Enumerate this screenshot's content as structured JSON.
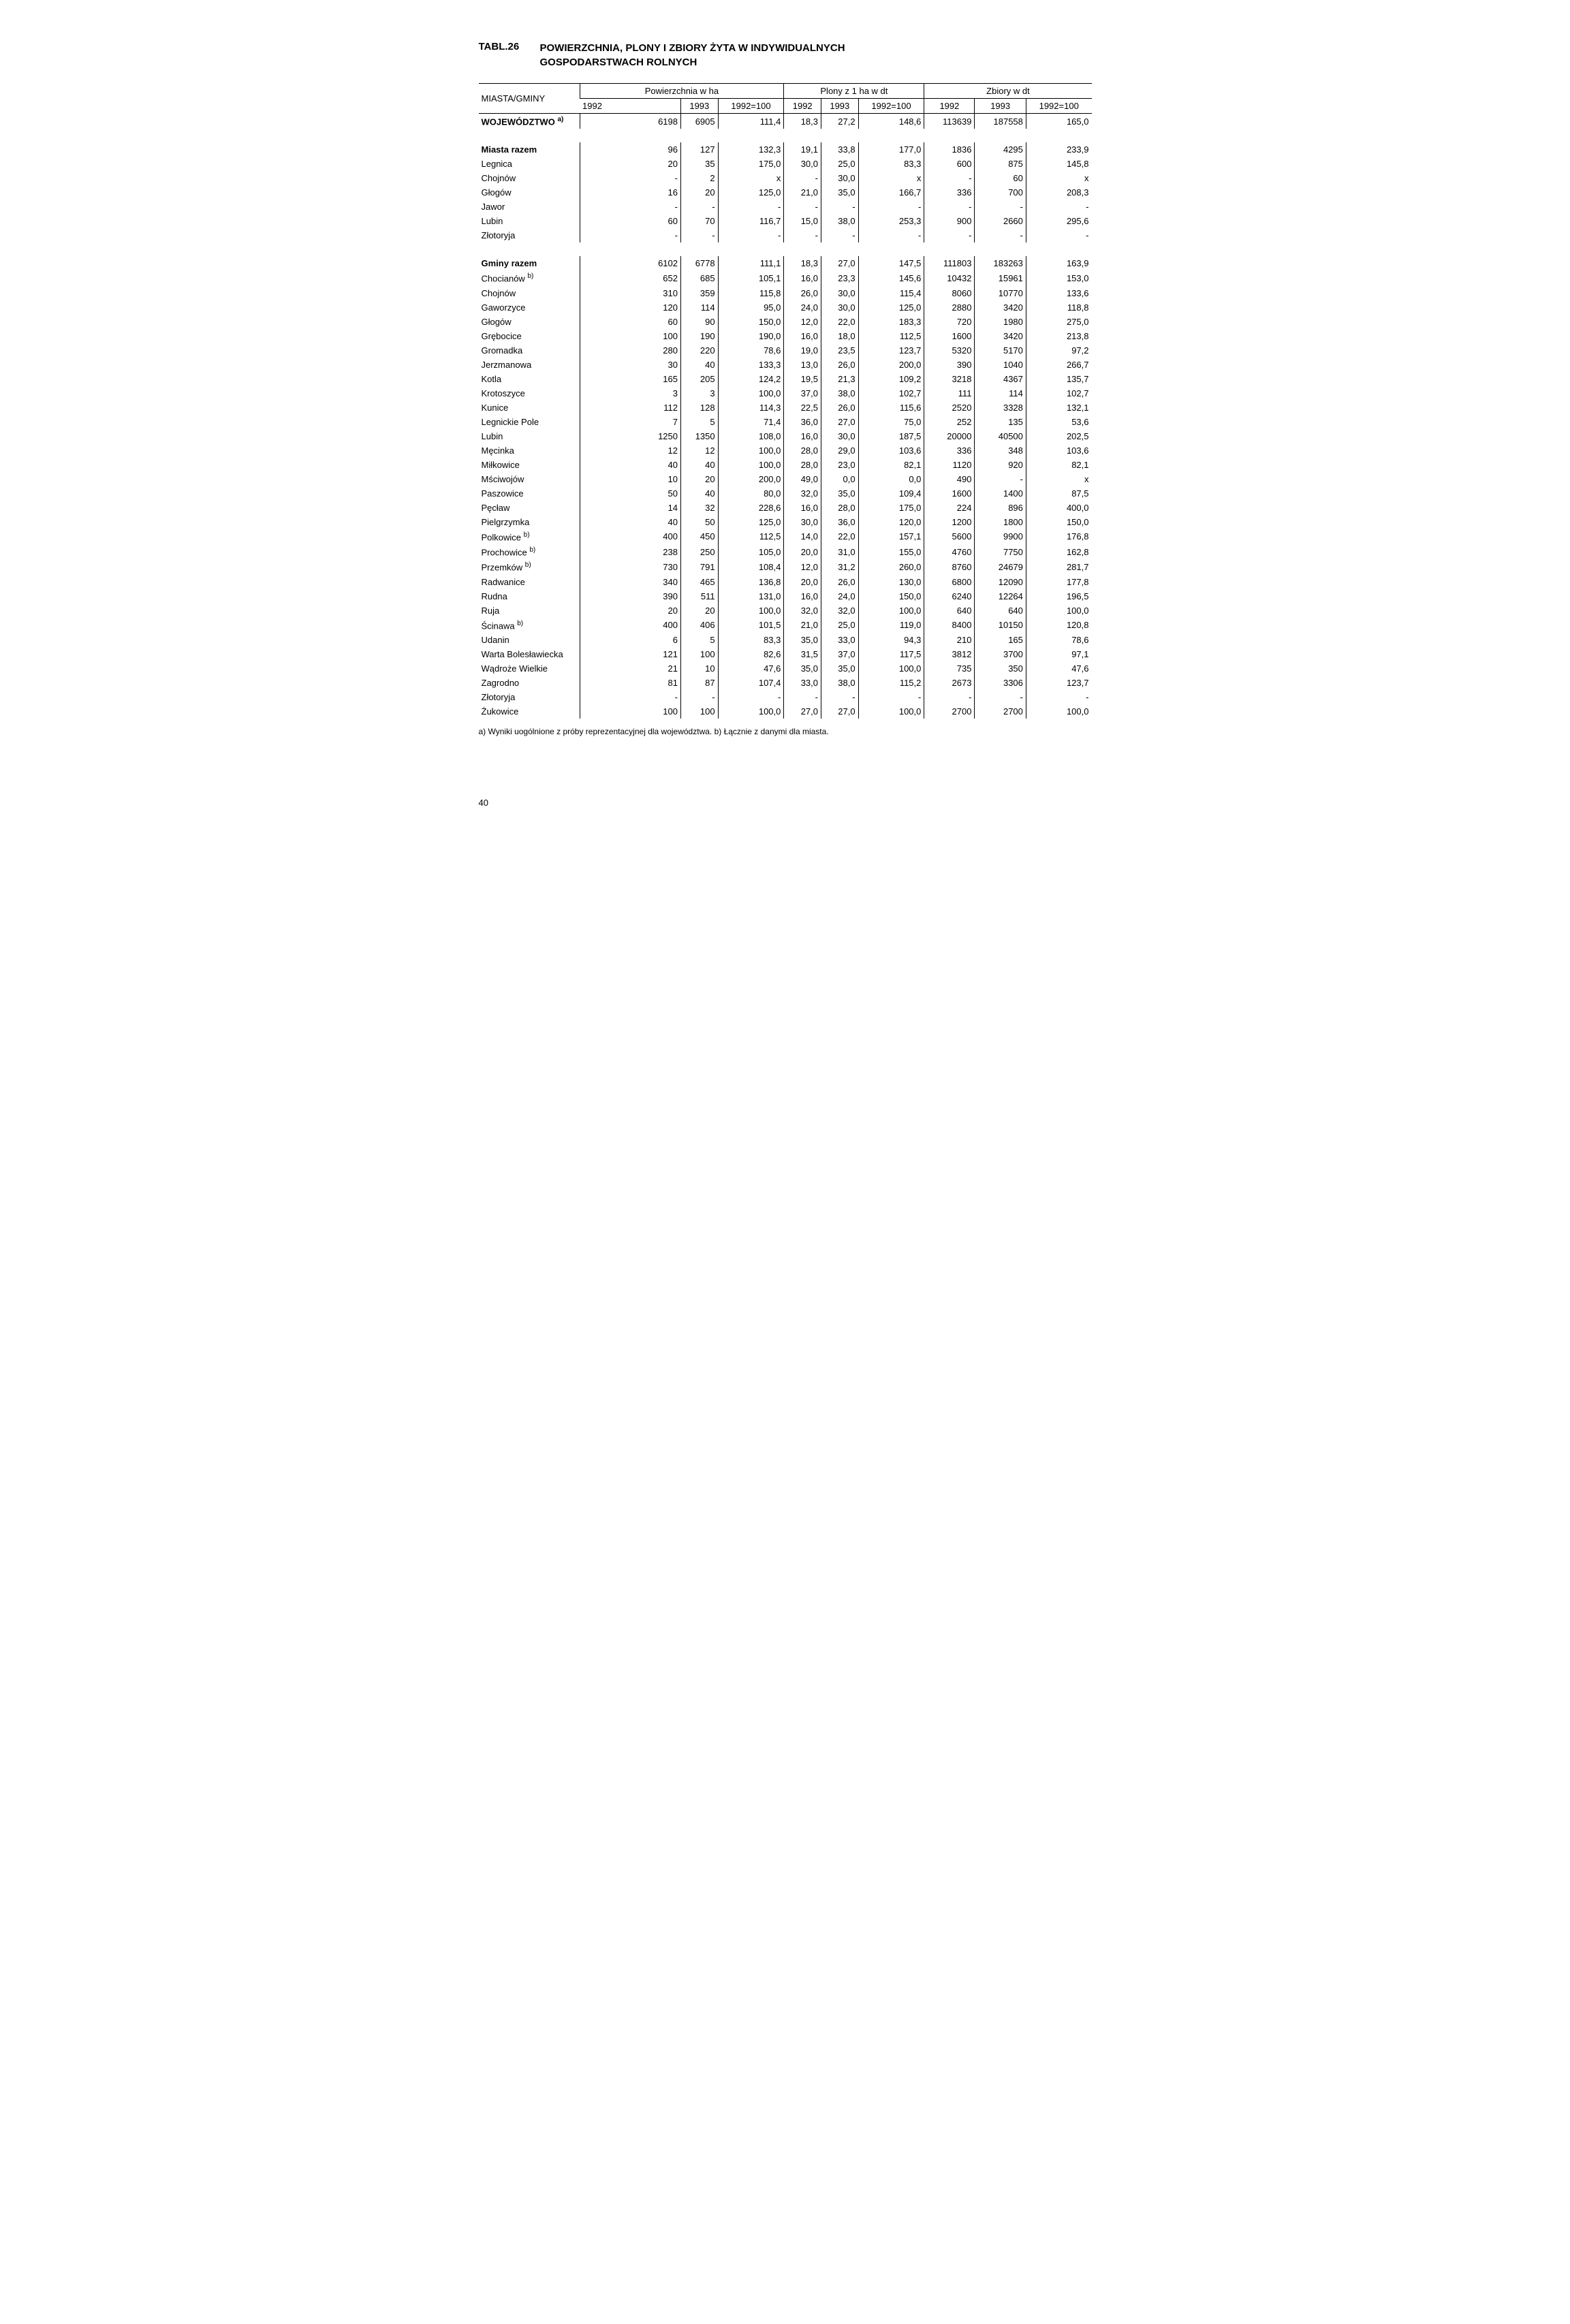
{
  "tabl_label": "TABL.26",
  "tabl_title_line1": "POWIERZCHNIA, PLONY I ZBIORY ŻYTA W INDYWIDUALNYCH",
  "tabl_title_line2": "GOSPODARSTWACH ROLNYCH",
  "header": {
    "col1": "MIASTA/GMINY",
    "group1": "Powierzchnia w ha",
    "group2": "Plony z 1 ha w dt",
    "group3": "Zbiory w dt",
    "y1992": "1992",
    "y1993": "1993",
    "idx": "1992=100"
  },
  "rows": [
    {
      "name": "WOJEWÓDZTWO ",
      "sup": "a)",
      "bold": true,
      "c": [
        "6198",
        "6905",
        "111,4",
        "18,3",
        "27,2",
        "148,6",
        "113639",
        "187558",
        "165,0"
      ]
    },
    {
      "name": "Miasta razem",
      "bold": true,
      "c": [
        "96",
        "127",
        "132,3",
        "19,1",
        "33,8",
        "177,0",
        "1836",
        "4295",
        "233,9"
      ]
    },
    {
      "name": "Legnica",
      "c": [
        "20",
        "35",
        "175,0",
        "30,0",
        "25,0",
        "83,3",
        "600",
        "875",
        "145,8"
      ]
    },
    {
      "name": "Chojnów",
      "c": [
        "-",
        "2",
        "x",
        "-",
        "30,0",
        "x",
        "-",
        "60",
        "x"
      ]
    },
    {
      "name": "Głogów",
      "c": [
        "16",
        "20",
        "125,0",
        "21,0",
        "35,0",
        "166,7",
        "336",
        "700",
        "208,3"
      ]
    },
    {
      "name": "Jawor",
      "c": [
        "-",
        "-",
        "-",
        "-",
        "-",
        "-",
        "-",
        "-",
        "-"
      ]
    },
    {
      "name": "Lubin",
      "c": [
        "60",
        "70",
        "116,7",
        "15,0",
        "38,0",
        "253,3",
        "900",
        "2660",
        "295,6"
      ]
    },
    {
      "name": "Złotoryja",
      "c": [
        "-",
        "-",
        "-",
        "-",
        "-",
        "-",
        "-",
        "-",
        "-"
      ]
    },
    {
      "name": "Gminy razem",
      "bold": true,
      "c": [
        "6102",
        "6778",
        "111,1",
        "18,3",
        "27,0",
        "147,5",
        "111803",
        "183263",
        "163,9"
      ]
    },
    {
      "name": "Chocianów ",
      "sup": "b)",
      "c": [
        "652",
        "685",
        "105,1",
        "16,0",
        "23,3",
        "145,6",
        "10432",
        "15961",
        "153,0"
      ]
    },
    {
      "name": "Chojnów",
      "c": [
        "310",
        "359",
        "115,8",
        "26,0",
        "30,0",
        "115,4",
        "8060",
        "10770",
        "133,6"
      ]
    },
    {
      "name": "Gaworzyce",
      "c": [
        "120",
        "114",
        "95,0",
        "24,0",
        "30,0",
        "125,0",
        "2880",
        "3420",
        "118,8"
      ]
    },
    {
      "name": "Głogów",
      "c": [
        "60",
        "90",
        "150,0",
        "12,0",
        "22,0",
        "183,3",
        "720",
        "1980",
        "275,0"
      ]
    },
    {
      "name": "Grębocice",
      "c": [
        "100",
        "190",
        "190,0",
        "16,0",
        "18,0",
        "112,5",
        "1600",
        "3420",
        "213,8"
      ]
    },
    {
      "name": "Gromadka",
      "c": [
        "280",
        "220",
        "78,6",
        "19,0",
        "23,5",
        "123,7",
        "5320",
        "5170",
        "97,2"
      ]
    },
    {
      "name": "Jerzmanowa",
      "c": [
        "30",
        "40",
        "133,3",
        "13,0",
        "26,0",
        "200,0",
        "390",
        "1040",
        "266,7"
      ]
    },
    {
      "name": "Kotla",
      "c": [
        "165",
        "205",
        "124,2",
        "19,5",
        "21,3",
        "109,2",
        "3218",
        "4367",
        "135,7"
      ]
    },
    {
      "name": "Krotoszyce",
      "c": [
        "3",
        "3",
        "100,0",
        "37,0",
        "38,0",
        "102,7",
        "111",
        "114",
        "102,7"
      ]
    },
    {
      "name": "Kunice",
      "c": [
        "112",
        "128",
        "114,3",
        "22,5",
        "26,0",
        "115,6",
        "2520",
        "3328",
        "132,1"
      ]
    },
    {
      "name": "Legnickie Pole",
      "c": [
        "7",
        "5",
        "71,4",
        "36,0",
        "27,0",
        "75,0",
        "252",
        "135",
        "53,6"
      ]
    },
    {
      "name": "Lubin",
      "c": [
        "1250",
        "1350",
        "108,0",
        "16,0",
        "30,0",
        "187,5",
        "20000",
        "40500",
        "202,5"
      ]
    },
    {
      "name": "Męcinka",
      "c": [
        "12",
        "12",
        "100,0",
        "28,0",
        "29,0",
        "103,6",
        "336",
        "348",
        "103,6"
      ]
    },
    {
      "name": "Miłkowice",
      "c": [
        "40",
        "40",
        "100,0",
        "28,0",
        "23,0",
        "82,1",
        "1120",
        "920",
        "82,1"
      ]
    },
    {
      "name": "Mściwojów",
      "c": [
        "10",
        "20",
        "200,0",
        "49,0",
        "0,0",
        "0,0",
        "490",
        "-",
        "x"
      ]
    },
    {
      "name": "Paszowice",
      "c": [
        "50",
        "40",
        "80,0",
        "32,0",
        "35,0",
        "109,4",
        "1600",
        "1400",
        "87,5"
      ]
    },
    {
      "name": "Pęcław",
      "c": [
        "14",
        "32",
        "228,6",
        "16,0",
        "28,0",
        "175,0",
        "224",
        "896",
        "400,0"
      ]
    },
    {
      "name": "Pielgrzymka",
      "c": [
        "40",
        "50",
        "125,0",
        "30,0",
        "36,0",
        "120,0",
        "1200",
        "1800",
        "150,0"
      ]
    },
    {
      "name": "Polkowice ",
      "sup": "b)",
      "c": [
        "400",
        "450",
        "112,5",
        "14,0",
        "22,0",
        "157,1",
        "5600",
        "9900",
        "176,8"
      ]
    },
    {
      "name": "Prochowice ",
      "sup": "b)",
      "c": [
        "238",
        "250",
        "105,0",
        "20,0",
        "31,0",
        "155,0",
        "4760",
        "7750",
        "162,8"
      ]
    },
    {
      "name": "Przemków ",
      "sup": "b)",
      "c": [
        "730",
        "791",
        "108,4",
        "12,0",
        "31,2",
        "260,0",
        "8760",
        "24679",
        "281,7"
      ]
    },
    {
      "name": "Radwanice",
      "c": [
        "340",
        "465",
        "136,8",
        "20,0",
        "26,0",
        "130,0",
        "6800",
        "12090",
        "177,8"
      ]
    },
    {
      "name": "Rudna",
      "c": [
        "390",
        "511",
        "131,0",
        "16,0",
        "24,0",
        "150,0",
        "6240",
        "12264",
        "196,5"
      ]
    },
    {
      "name": "Ruja",
      "c": [
        "20",
        "20",
        "100,0",
        "32,0",
        "32,0",
        "100,0",
        "640",
        "640",
        "100,0"
      ]
    },
    {
      "name": "Ścinawa ",
      "sup": "b)",
      "c": [
        "400",
        "406",
        "101,5",
        "21,0",
        "25,0",
        "119,0",
        "8400",
        "10150",
        "120,8"
      ]
    },
    {
      "name": "Udanin",
      "c": [
        "6",
        "5",
        "83,3",
        "35,0",
        "33,0",
        "94,3",
        "210",
        "165",
        "78,6"
      ]
    },
    {
      "name": "Warta Bolesławiecka",
      "c": [
        "121",
        "100",
        "82,6",
        "31,5",
        "37,0",
        "117,5",
        "3812",
        "3700",
        "97,1"
      ]
    },
    {
      "name": "Wądroże Wielkie",
      "c": [
        "21",
        "10",
        "47,6",
        "35,0",
        "35,0",
        "100,0",
        "735",
        "350",
        "47,6"
      ]
    },
    {
      "name": "Zagrodno",
      "c": [
        "81",
        "87",
        "107,4",
        "33,0",
        "38,0",
        "115,2",
        "2673",
        "3306",
        "123,7"
      ]
    },
    {
      "name": "Złotoryja",
      "c": [
        "-",
        "-",
        "-",
        "-",
        "-",
        "-",
        "-",
        "-",
        "-"
      ]
    },
    {
      "name": "Żukowice",
      "c": [
        "100",
        "100",
        "100,0",
        "27,0",
        "27,0",
        "100,0",
        "2700",
        "2700",
        "100,0"
      ]
    }
  ],
  "footnote": "a) Wyniki uogólnione z próby reprezentacyjnej dla województwa. b) Łącznie z danymi dla miasta.",
  "page_number": "40"
}
